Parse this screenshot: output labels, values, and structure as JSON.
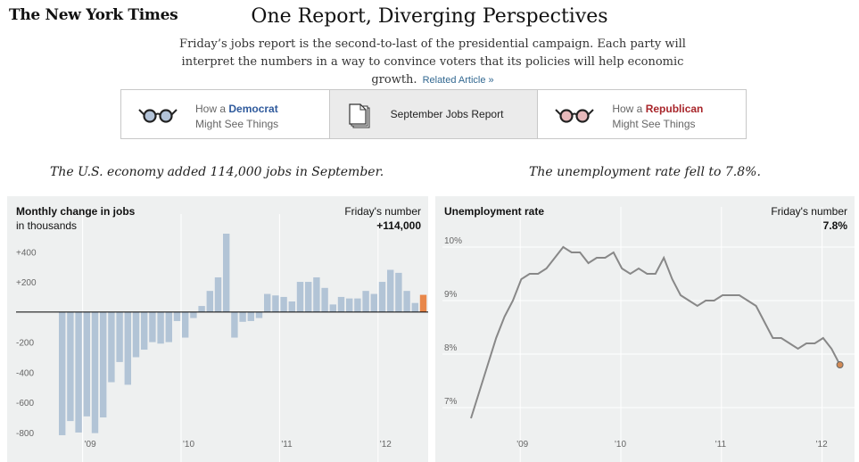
{
  "masthead": "The New York Times",
  "headline": "One Report, Diverging Perspectives",
  "intro": "Friday’s jobs report is the second-to-last of the presidential campaign. Each party will interpret the numbers in a way to convince voters that its policies will help economic growth.",
  "related_link": "Related Article »",
  "tabs": {
    "democrat": {
      "line1": "How a",
      "party": "Democrat",
      "line2": "Might See Things",
      "glasses_color": "#b3c3d8"
    },
    "middle": {
      "label": "September Jobs Report"
    },
    "republican": {
      "line1": "How a",
      "party": "Republican",
      "line2": "Might See Things",
      "glasses_color": "#e7b9bb"
    }
  },
  "subheads": {
    "left": "The U.S. economy added 114,000 jobs in September.",
    "right": "The unemployment rate fell to 7.8%."
  },
  "colors": {
    "bars": "#b2c4d6",
    "highlight": "#e8874a",
    "line": "#888888",
    "panel_bg": "#eef0f0"
  },
  "chart_data": [
    {
      "type": "bar",
      "title": "Monthly change in jobs",
      "subtitle": "in thousands",
      "friday_label": "Friday's number",
      "friday_value": "+114,000",
      "ylim": [
        -830,
        520
      ],
      "yticks": [
        400,
        200,
        -200,
        -400,
        -600,
        -800
      ],
      "ytick_labels": [
        "+400",
        "+200",
        "-200",
        "-400",
        "-600",
        "-800"
      ],
      "xtick_labels": [
        "'09",
        "'10",
        "'11",
        "'12"
      ],
      "xtick_positions": [
        3,
        15,
        27,
        39
      ],
      "highlight_index": 44,
      "values": [
        -818,
        -724,
        -800,
        -693,
        -804,
        -700,
        -466,
        -332,
        -483,
        -300,
        -250,
        -200,
        -210,
        -200,
        -60,
        -170,
        -40,
        40,
        140,
        230,
        520,
        -170,
        -65,
        -60,
        -40,
        120,
        110,
        100,
        70,
        200,
        200,
        230,
        160,
        50,
        100,
        90,
        90,
        140,
        120,
        200,
        280,
        260,
        140,
        60,
        114
      ],
      "palette_note": "color only"
    },
    {
      "type": "line",
      "title": "Unemployment rate",
      "friday_label": "Friday's number",
      "friday_value": "7.8%",
      "ylim": [
        6.45,
        10.45
      ],
      "yticks": [
        10,
        9,
        8,
        7
      ],
      "ytick_labels": [
        "10%",
        "9%",
        "8%",
        "7%"
      ],
      "xtick_labels": [
        "'09",
        "'10",
        "'11",
        "'12"
      ],
      "xtick_positions": [
        3,
        15,
        27,
        39
      ],
      "values": [
        6.8,
        7.3,
        7.8,
        8.3,
        8.7,
        9.0,
        9.4,
        9.5,
        9.5,
        9.6,
        9.8,
        10.0,
        9.9,
        9.9,
        9.7,
        9.8,
        9.8,
        9.9,
        9.6,
        9.5,
        9.6,
        9.5,
        9.5,
        9.8,
        9.4,
        9.1,
        9.0,
        8.9,
        9.0,
        9.0,
        9.1,
        9.1,
        9.1,
        9.0,
        8.9,
        8.6,
        8.3,
        8.3,
        8.2,
        8.1,
        8.2,
        8.2,
        8.3,
        8.1,
        7.8
      ]
    }
  ]
}
